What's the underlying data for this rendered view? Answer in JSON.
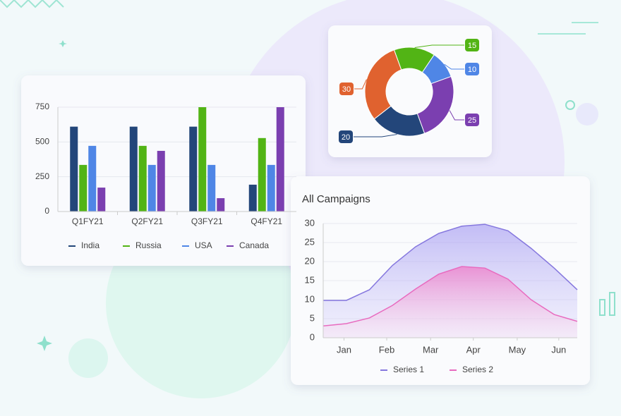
{
  "chart_data": [
    {
      "type": "bar",
      "categories": [
        "Q1FY21",
        "Q2FY21",
        "Q3FY21",
        "Q4FY21"
      ],
      "series": [
        {
          "name": "India",
          "color": "#23467a",
          "values": [
            610,
            610,
            610,
            193
          ]
        },
        {
          "name": "Russia",
          "color": "#52b415",
          "values": [
            335,
            472,
            750,
            528
          ]
        },
        {
          "name": "USA",
          "color": "#4f86e6",
          "values": [
            472,
            335,
            335,
            335
          ]
        },
        {
          "name": "Canada",
          "color": "#7b3fb0",
          "values": [
            172,
            436,
            96,
            750
          ]
        }
      ],
      "ylim": [
        0,
        750
      ],
      "yticks": [
        0,
        250,
        500,
        750
      ],
      "grid": true,
      "legend": "bottom"
    },
    {
      "type": "pie",
      "values": [
        15,
        10,
        25,
        20,
        30
      ],
      "colors": [
        "#52b415",
        "#4f86e6",
        "#7b3fb0",
        "#23467a",
        "#e0622f"
      ],
      "donut": true
    },
    {
      "type": "area",
      "title": "All Campaigns",
      "x": [
        0,
        1,
        2,
        3,
        4,
        5,
        6,
        7,
        8,
        9,
        10,
        11
      ],
      "series": [
        {
          "name": "Series 1",
          "color": "#8577de",
          "values": [
            9.8,
            9.8,
            12.6,
            19,
            23.9,
            27.4,
            29.3,
            29.8,
            28.1,
            23.5,
            18.3,
            12.6
          ]
        },
        {
          "name": "Series 2",
          "color": "#e86bbf",
          "values": [
            3.1,
            3.7,
            5.2,
            8.5,
            12.8,
            16.7,
            18.7,
            18.3,
            15.4,
            10,
            6.1,
            4.3
          ]
        }
      ],
      "xlim": [
        0,
        11
      ],
      "xticks": [
        {
          "value": 0.9,
          "label": "Jan"
        },
        {
          "value": 2.75,
          "label": "Feb"
        },
        {
          "value": 4.65,
          "label": "Mar"
        },
        {
          "value": 6.5,
          "label": "Apr"
        },
        {
          "value": 8.4,
          "label": "May"
        },
        {
          "value": 10.2,
          "label": "Jun"
        }
      ],
      "ylim": [
        0,
        30
      ],
      "yticks": [
        0,
        5,
        10,
        15,
        20,
        25,
        30
      ],
      "grid": true,
      "legend": "bottom"
    }
  ]
}
